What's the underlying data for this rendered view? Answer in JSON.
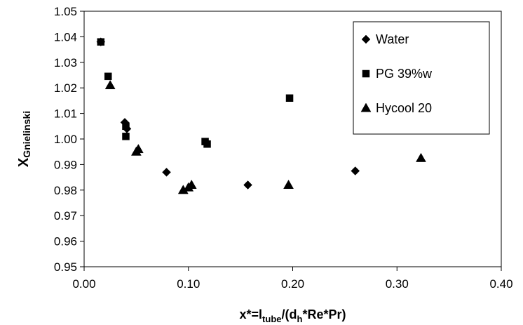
{
  "chart_data": {
    "type": "scatter",
    "xlim": [
      0.0,
      0.4
    ],
    "ylim": [
      0.95,
      1.05
    ],
    "x_ticks": [
      "0.00",
      "0.10",
      "0.20",
      "0.30",
      "0.40"
    ],
    "y_ticks": [
      "0.95",
      "0.96",
      "0.97",
      "0.98",
      "0.99",
      "1.00",
      "1.01",
      "1.02",
      "1.03",
      "1.04",
      "1.05"
    ],
    "xlabel": {
      "prefix": "x*=l",
      "sub1": "tube",
      "mid": "/(d",
      "sub2": "h",
      "suffix": "*Re*Pr)"
    },
    "ylabel": {
      "main": "X",
      "sub": "Gnielinski"
    },
    "grid": false,
    "legend_position": "top-right",
    "series": [
      {
        "name": "Water",
        "marker": "diamond",
        "color": "#000000",
        "points": [
          [
            0.016,
            1.038
          ],
          [
            0.039,
            1.0065
          ],
          [
            0.041,
            1.004
          ],
          [
            0.079,
            0.987
          ],
          [
            0.157,
            0.982
          ],
          [
            0.26,
            0.9875
          ]
        ]
      },
      {
        "name": "PG 39%w",
        "marker": "square",
        "color": "#000000",
        "points": [
          [
            0.016,
            1.038
          ],
          [
            0.023,
            1.0245
          ],
          [
            0.04,
            1.005
          ],
          [
            0.04,
            1.001
          ],
          [
            0.116,
            0.999
          ],
          [
            0.118,
            0.998
          ],
          [
            0.197,
            1.016
          ]
        ]
      },
      {
        "name": "Hycool 20",
        "marker": "triangle",
        "color": "#000000",
        "points": [
          [
            0.025,
            1.021
          ],
          [
            0.05,
            0.995
          ],
          [
            0.052,
            0.996
          ],
          [
            0.095,
            0.98
          ],
          [
            0.1,
            0.981
          ],
          [
            0.103,
            0.982
          ],
          [
            0.196,
            0.982
          ],
          [
            0.323,
            0.9925
          ]
        ]
      }
    ]
  }
}
